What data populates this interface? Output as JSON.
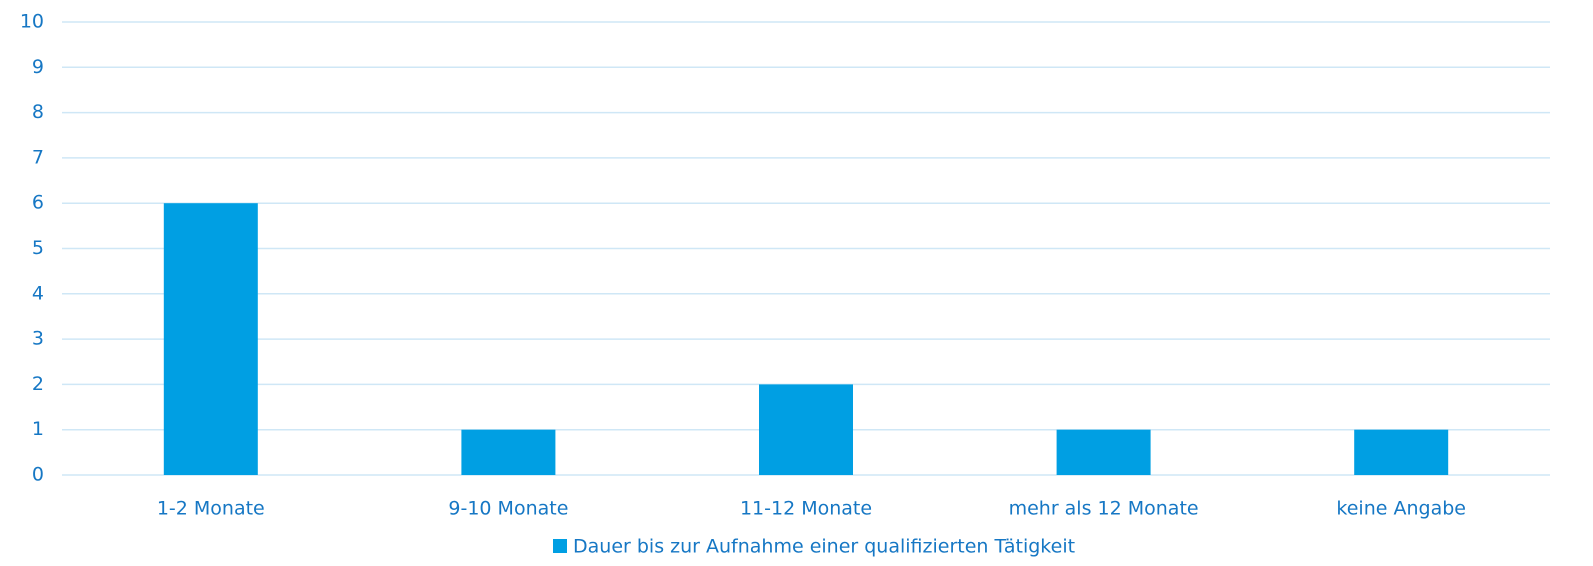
{
  "chart_data": {
    "type": "bar",
    "categories": [
      "1-2 Monate",
      "9-10 Monate",
      "11-12 Monate",
      "mehr als 12 Monate",
      "keine Angabe"
    ],
    "series": [
      {
        "name": "Dauer bis zur Aufnahme einer qualifizierten Tätigkeit",
        "color": "#009fe3",
        "values": [
          6,
          1,
          2,
          1,
          1
        ]
      }
    ],
    "ylim": [
      0,
      10
    ],
    "yticks": [
      0,
      1,
      2,
      3,
      4,
      5,
      6,
      7,
      8,
      9,
      10
    ],
    "grid": true,
    "legend": "bottom"
  }
}
